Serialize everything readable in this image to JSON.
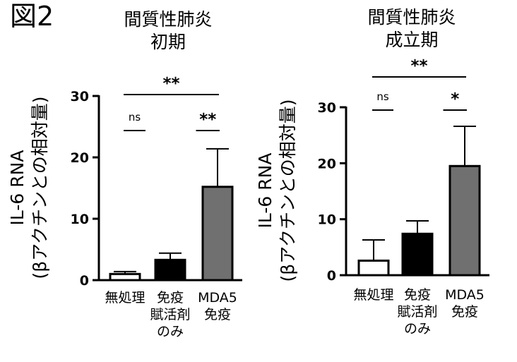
{
  "figure_label": "図2",
  "chart_data": [
    {
      "type": "bar",
      "title": [
        "間質性肺炎",
        "初期"
      ],
      "ylabel": [
        "IL-6 RNA",
        "(βアクチンとの相対量)"
      ],
      "xlabel": "",
      "ylim": [
        0,
        30
      ],
      "yticks": [
        0,
        10,
        20,
        30
      ],
      "categories": [
        [
          "無処理"
        ],
        [
          "免疫",
          "賦活剤",
          "のみ"
        ],
        [
          "MDA5",
          "免疫"
        ]
      ],
      "values": [
        1.0,
        3.3,
        15.2
      ],
      "errors": [
        0.4,
        1.1,
        6.2
      ],
      "colors": [
        "#ffffff",
        "#000000",
        "#707070"
      ],
      "annotations": [
        {
          "from": 1,
          "to": 2,
          "label": "ns"
        },
        {
          "from": 2,
          "to": 3,
          "label": "**"
        },
        {
          "from": 1,
          "to": 3,
          "label": "**"
        }
      ]
    },
    {
      "type": "bar",
      "title": [
        "間質性肺炎",
        "成立期"
      ],
      "ylabel": [
        "IL-6 RNA",
        "(βアクチンとの相対量)"
      ],
      "xlabel": "",
      "ylim": [
        0,
        30
      ],
      "yticks": [
        0,
        10,
        20,
        30
      ],
      "categories": [
        [
          "無処理"
        ],
        [
          "免疫",
          "賦活剤",
          "のみ"
        ],
        [
          "MDA5",
          "免疫"
        ]
      ],
      "values": [
        2.6,
        7.4,
        19.5
      ],
      "errors": [
        3.7,
        2.3,
        7.1
      ],
      "colors": [
        "#ffffff",
        "#000000",
        "#707070"
      ],
      "annotations": [
        {
          "from": 1,
          "to": 2,
          "label": "ns"
        },
        {
          "from": 2,
          "to": 3,
          "label": "*"
        },
        {
          "from": 1,
          "to": 3,
          "label": "**"
        }
      ]
    }
  ]
}
